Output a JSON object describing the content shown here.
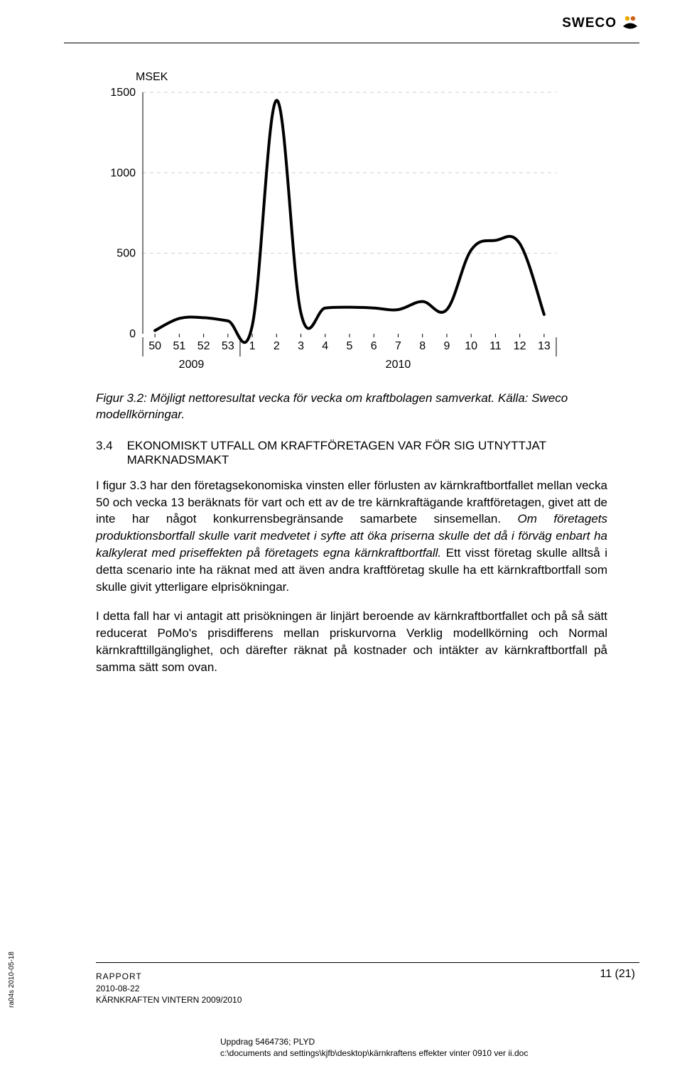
{
  "brand": "SWECO",
  "header_rule_color": "#000000",
  "chart": {
    "type": "line",
    "title": "MSEK",
    "ylim": [
      0,
      1500
    ],
    "yticks": [
      0,
      500,
      1000,
      1500
    ],
    "xticks": [
      "50",
      "51",
      "52",
      "53",
      "1",
      "2",
      "3",
      "4",
      "5",
      "6",
      "7",
      "8",
      "9",
      "10",
      "11",
      "12",
      "13"
    ],
    "x_group_labels": [
      "2009",
      "2010"
    ],
    "x_group_split_index": 4,
    "line_color": "#000000",
    "line_width": 4,
    "grid_color": "#cfcfcf",
    "axis_color": "#000000",
    "tick_fontsize": 16,
    "title_fontsize": 16,
    "background": "#ffffff",
    "values": [
      20,
      95,
      100,
      80,
      50,
      1450,
      130,
      160,
      165,
      160,
      150,
      200,
      150,
      520,
      580,
      560,
      120
    ]
  },
  "caption": "Figur 3.2: Möjligt nettoresultat vecka för vecka om kraftbolagen samverkat. Källa: Sweco modellkörningar.",
  "section": {
    "number": "3.4",
    "title": "EKONOMISKT UTFALL OM KRAFTFÖRETAGEN VAR FÖR SIG UTNYTTJAT MARKNADSMAKT"
  },
  "para1": "I figur 3.3 har den företagsekonomiska vinsten eller förlusten av kärnkraftbortfallet mellan vecka 50 och vecka 13 beräknats för vart och ett av de tre kärnkraftägande kraftföretagen, givet att de inte har något konkurrensbegränsande samarbete sinsemellan. Om företagets produktionsbortfall skulle varit medvetet i syfte att öka priserna skulle det då i förväg enbart ha kalkylerat med priseffekten på företagets egna kärnkraftbortfall. Ett visst företag skulle alltså i detta scenario inte ha räknat med att även andra kraftföretag skulle ha ett kärnkraftbortfall som skulle givit ytterligare elprisökningar.",
  "para1_italic_prefix_end": 289,
  "para2": "I detta fall har vi antagit att prisökningen är linjärt beroende av kärnkraftbortfallet och på så sätt reducerat PoMo's prisdifferens mellan priskurvorna Verklig modellkörning och Normal kärnkrafttillgänglighet, och därefter räknat på kostnader och intäkter av kärnkraftbortfall på samma sätt som ovan.",
  "page_number": "11 (21)",
  "footer": {
    "line1": "RAPPORT",
    "line2": "2010-08-22",
    "line3": "KÄRNKRAFTEN VINTERN 2009/2010",
    "center1": "Uppdrag 5464736; PLYD",
    "center2": "c:\\documents and settings\\kjfb\\desktop\\kärnkraftens effekter vinter 0910 ver ii.doc"
  },
  "side_label": "ra04s 2010-05-18"
}
